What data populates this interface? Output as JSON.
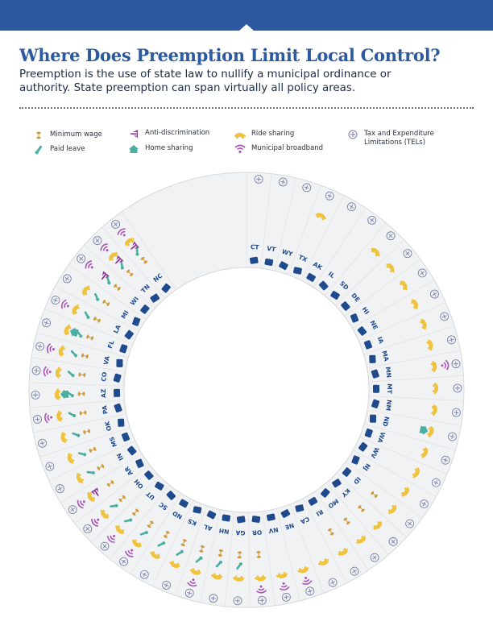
{
  "title": "Where Does Preemption Limit Local Control?",
  "intro": "Preemption is the use of state law to nullify a municipal ordinance or authority. State preemption can span virtually all policy areas.",
  "colors": {
    "brand": "#2c5aa0",
    "state": "#1f4b8e",
    "minimum_wage": "#d09a3a",
    "paid_leave": "#4aaea0",
    "anti_discrimination": "#8e3d94",
    "home_sharing": "#4aaea0",
    "ride_sharing": "#efc33d",
    "municipal_broadband": "#a957b8",
    "tel": "#7480a6",
    "ring_fill": "#f1f2f3"
  },
  "legend": {
    "minimum_wage": {
      "label": "Minimum wage",
      "icon": "dollar-icon"
    },
    "paid_leave": {
      "label": "Paid leave",
      "icon": "thermometer-icon"
    },
    "anti_discrimination": {
      "label": "Anti-discrimination",
      "icon": "equality-icon"
    },
    "home_sharing": {
      "label": "Home sharing",
      "icon": "house-icon"
    },
    "ride_sharing": {
      "label": "Ride sharing",
      "icon": "car-icon"
    },
    "municipal_broadband": {
      "label": "Municipal broadband",
      "icon": "wifi-icon"
    },
    "tel": {
      "label": "Tax and Expenditure Limitations (TELs)",
      "icon": "tel-icon"
    }
  },
  "states": [
    {
      "code": "CT",
      "policies": [
        "tel"
      ]
    },
    {
      "code": "VT",
      "policies": [
        "tel"
      ]
    },
    {
      "code": "WY",
      "policies": [
        "tel"
      ]
    },
    {
      "code": "TX",
      "policies": [
        "ride_sharing",
        "tel"
      ]
    },
    {
      "code": "AK",
      "policies": [
        "tel"
      ]
    },
    {
      "code": "IL",
      "policies": [
        "tel"
      ]
    },
    {
      "code": "SD",
      "policies": [
        "ride_sharing",
        "tel"
      ]
    },
    {
      "code": "DE",
      "policies": [
        "ride_sharing",
        "tel"
      ]
    },
    {
      "code": "HI",
      "policies": [
        "ride_sharing",
        "tel"
      ]
    },
    {
      "code": "NE",
      "policies": [
        "ride_sharing",
        "tel"
      ]
    },
    {
      "code": "IA",
      "policies": [
        "ride_sharing",
        "tel"
      ]
    },
    {
      "code": "MA",
      "policies": [
        "ride_sharing",
        "tel"
      ]
    },
    {
      "code": "MN",
      "policies": [
        "ride_sharing",
        "municipal_broadband",
        "tel"
      ]
    },
    {
      "code": "MT",
      "policies": [
        "ride_sharing",
        "tel"
      ]
    },
    {
      "code": "NM",
      "policies": [
        "ride_sharing",
        "tel"
      ]
    },
    {
      "code": "ND",
      "policies": [
        "ride_sharing",
        "home_sharing",
        "tel"
      ]
    },
    {
      "code": "WA",
      "policies": [
        "ride_sharing",
        "tel"
      ]
    },
    {
      "code": "WV",
      "policies": [
        "ride_sharing",
        "tel"
      ]
    },
    {
      "code": "NJ",
      "policies": [
        "ride_sharing",
        "tel"
      ]
    },
    {
      "code": "ID",
      "policies": [
        "minimum_wage",
        "ride_sharing",
        "tel"
      ]
    },
    {
      "code": "KY",
      "policies": [
        "minimum_wage",
        "ride_sharing",
        "tel"
      ]
    },
    {
      "code": "MO",
      "policies": [
        "minimum_wage",
        "ride_sharing",
        "tel"
      ]
    },
    {
      "code": "RI",
      "policies": [
        "minimum_wage",
        "ride_sharing",
        "tel"
      ]
    },
    {
      "code": "CA",
      "policies": [
        "ride_sharing",
        "tel"
      ]
    },
    {
      "code": "NE",
      "policies": [
        "ride_sharing",
        "municipal_broadband",
        "tel"
      ]
    },
    {
      "code": "NV",
      "policies": [
        "ride_sharing",
        "municipal_broadband",
        "tel"
      ]
    },
    {
      "code": "OR",
      "policies": [
        "minimum_wage",
        "ride_sharing",
        "municipal_broadband",
        "tel"
      ]
    },
    {
      "code": "GA",
      "policies": [
        "minimum_wage",
        "paid_leave",
        "ride_sharing",
        "tel"
      ]
    },
    {
      "code": "NH",
      "policies": [
        "minimum_wage",
        "paid_leave",
        "ride_sharing",
        "tel"
      ]
    },
    {
      "code": "AL",
      "policies": [
        "minimum_wage",
        "paid_leave",
        "ride_sharing",
        "municipal_broadband",
        "tel"
      ]
    },
    {
      "code": "KS",
      "policies": [
        "minimum_wage",
        "paid_leave",
        "ride_sharing",
        "tel"
      ]
    },
    {
      "code": "ND",
      "policies": [
        "minimum_wage",
        "paid_leave",
        "ride_sharing",
        "tel"
      ]
    },
    {
      "code": "SC",
      "policies": [
        "minimum_wage",
        "paid_leave",
        "ride_sharing",
        "municipal_broadband",
        "tel"
      ]
    },
    {
      "code": "UT",
      "policies": [
        "minimum_wage",
        "paid_leave",
        "ride_sharing",
        "municipal_broadband",
        "tel"
      ]
    },
    {
      "code": "OH",
      "policies": [
        "minimum_wage",
        "paid_leave",
        "ride_sharing",
        "municipal_broadband",
        "tel"
      ]
    },
    {
      "code": "AR",
      "policies": [
        "minimum_wage",
        "anti_discrimination",
        "ride_sharing",
        "municipal_broadband",
        "tel"
      ]
    },
    {
      "code": "IN",
      "policies": [
        "minimum_wage",
        "paid_leave",
        "ride_sharing",
        "tel"
      ]
    },
    {
      "code": "MS",
      "policies": [
        "minimum_wage",
        "paid_leave",
        "ride_sharing",
        "tel"
      ]
    },
    {
      "code": "OK",
      "policies": [
        "minimum_wage",
        "paid_leave",
        "ride_sharing",
        "tel"
      ]
    },
    {
      "code": "PA",
      "policies": [
        "minimum_wage",
        "paid_leave",
        "ride_sharing",
        "municipal_broadband",
        "tel"
      ]
    },
    {
      "code": "AZ",
      "policies": [
        "minimum_wage",
        "paid_leave",
        "ride_sharing",
        "home_sharing",
        "tel"
      ]
    },
    {
      "code": "CO",
      "policies": [
        "minimum_wage",
        "paid_leave",
        "ride_sharing",
        "municipal_broadband",
        "tel"
      ]
    },
    {
      "code": "VA",
      "policies": [
        "minimum_wage",
        "paid_leave",
        "ride_sharing",
        "municipal_broadband",
        "tel"
      ]
    },
    {
      "code": "FL",
      "policies": [
        "minimum_wage",
        "paid_leave",
        "ride_sharing",
        "home_sharing",
        "tel"
      ]
    },
    {
      "code": "LA",
      "policies": [
        "minimum_wage",
        "paid_leave",
        "ride_sharing",
        "municipal_broadband",
        "tel"
      ]
    },
    {
      "code": "MI",
      "policies": [
        "minimum_wage",
        "paid_leave",
        "ride_sharing",
        "tel"
      ]
    },
    {
      "code": "WI",
      "policies": [
        "minimum_wage",
        "paid_leave",
        "anti_discrimination",
        "municipal_broadband",
        "tel"
      ]
    },
    {
      "code": "TN",
      "policies": [
        "minimum_wage",
        "paid_leave",
        "anti_discrimination",
        "ride_sharing",
        "municipal_broadband",
        "tel"
      ]
    },
    {
      "code": "NC",
      "policies": [
        "minimum_wage",
        "paid_leave",
        "anti_discrimination",
        "ride_sharing",
        "municipal_broadband",
        "tel"
      ]
    }
  ]
}
